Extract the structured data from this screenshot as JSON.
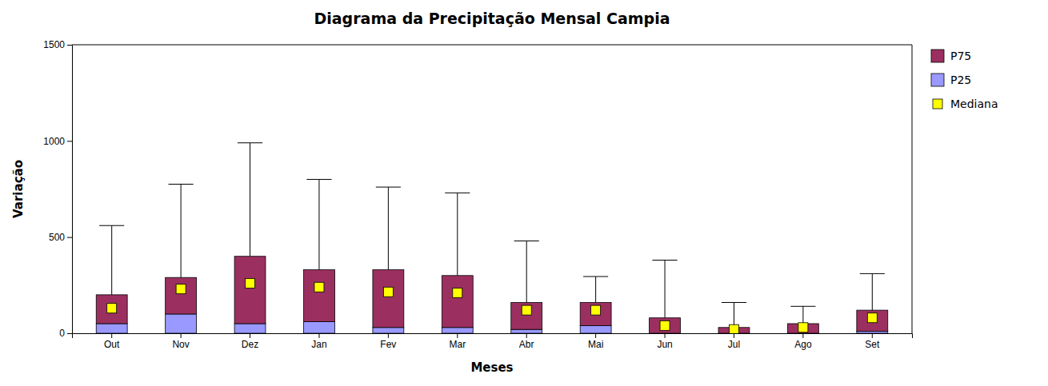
{
  "chart_data": {
    "type": "box",
    "title": "Diagrama da Precipitação Mensal Campia",
    "x_label": "Meses",
    "y_label": "Variação",
    "categories": [
      "Out",
      "Nov",
      "Dez",
      "Jan",
      "Fev",
      "Mar",
      "Abr",
      "Mai",
      "Jun",
      "Jul",
      "Ago",
      "Set"
    ],
    "series": [
      {
        "name": "P75",
        "color": "#9B3060",
        "values": [
          200,
          290,
          400,
          330,
          330,
          300,
          160,
          160,
          80,
          30,
          50,
          120
        ]
      },
      {
        "name": "P25",
        "color": "#9999FF",
        "values": [
          50,
          100,
          50,
          60,
          30,
          30,
          20,
          40,
          0,
          0,
          0,
          10
        ]
      },
      {
        "name": "Mediana",
        "color": "#FFFF00",
        "marker": "square",
        "values": [
          130,
          230,
          260,
          240,
          215,
          210,
          120,
          120,
          40,
          20,
          30,
          80
        ]
      }
    ],
    "whisker_top": [
      560,
      775,
      990,
      800,
      760,
      730,
      480,
      295,
      380,
      160,
      140,
      310
    ],
    "whisker_bottom": [
      0,
      0,
      0,
      0,
      0,
      0,
      0,
      0,
      0,
      0,
      0,
      0
    ],
    "ylim": [
      0,
      1500
    ],
    "yticks": [
      0,
      500,
      1000,
      1500
    ],
    "grid": false,
    "legend": "right"
  }
}
